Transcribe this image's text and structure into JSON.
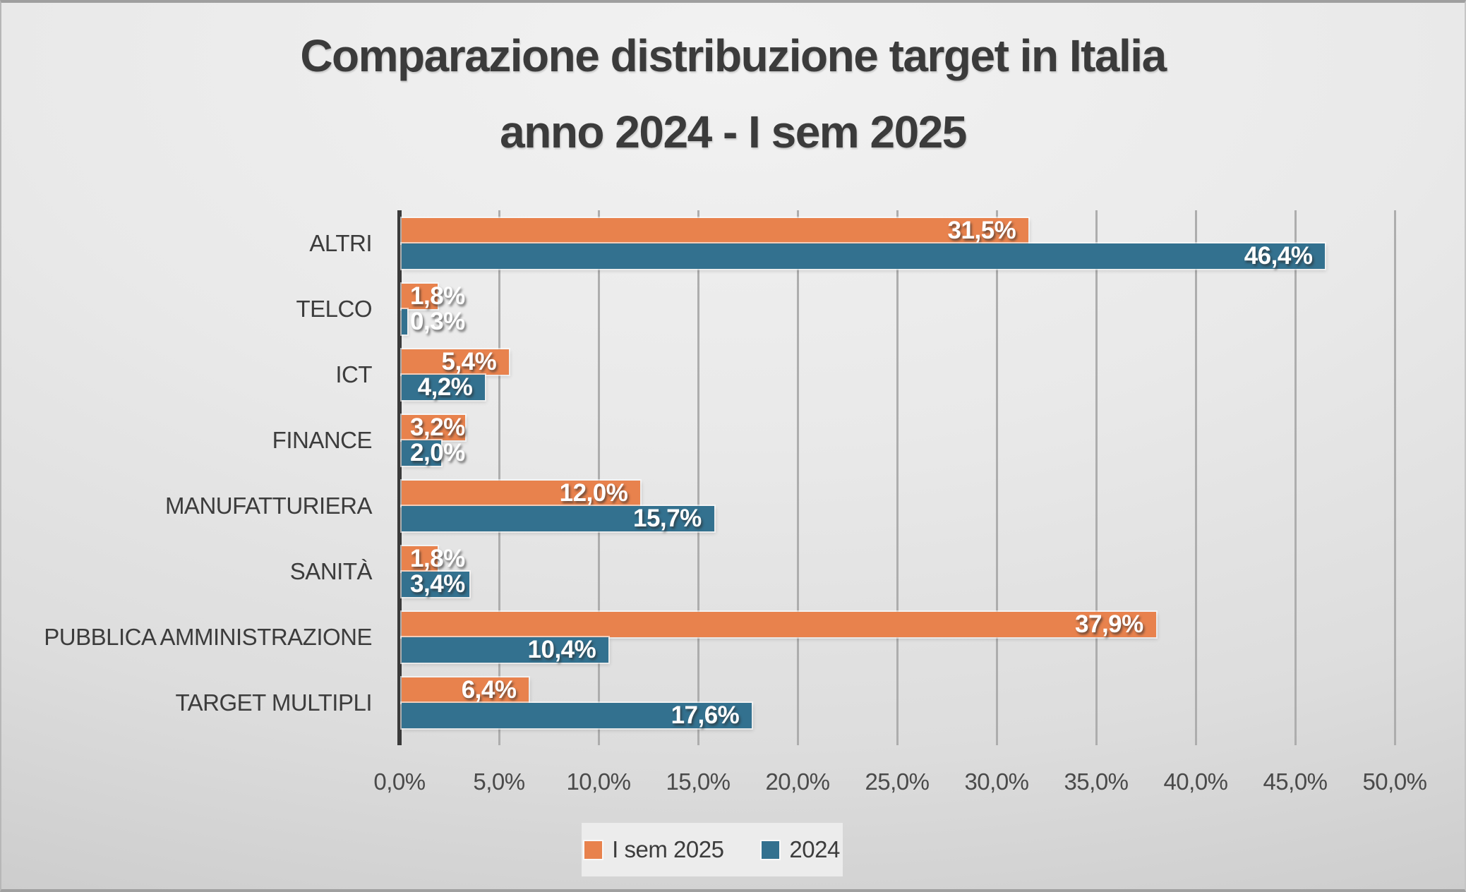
{
  "title": {
    "line1": "Comparazione distribuzione target in Italia",
    "line2": "anno 2024 - I sem 2025"
  },
  "chart_data": {
    "type": "bar",
    "orientation": "horizontal",
    "title": "Comparazione distribuzione target in Italia anno 2024 - I sem 2025",
    "categories": [
      "ALTRI",
      "TELCO",
      "ICT",
      "FINANCE",
      "MANUFATTURIERA",
      "SANITÀ",
      "PUBBLICA AMMINISTRAZIONE",
      "TARGET MULTIPLI"
    ],
    "series": [
      {
        "name": "I sem 2025",
        "color": "#E8824D",
        "values": [
          31.5,
          1.8,
          5.4,
          3.2,
          12.0,
          1.8,
          37.9,
          6.4
        ],
        "labels": [
          "31,5%",
          "1,8%",
          "5,4%",
          "3,2%",
          "12,0%",
          "1,8%",
          "37,9%",
          "6,4%"
        ]
      },
      {
        "name": "2024",
        "color": "#33718F",
        "values": [
          46.4,
          0.3,
          4.2,
          2.0,
          15.7,
          3.4,
          10.4,
          17.6
        ],
        "labels": [
          "46,4%",
          "0,3%",
          "4,2%",
          "2,0%",
          "15,7%",
          "3,4%",
          "10,4%",
          "17,6%"
        ]
      }
    ],
    "x_axis": {
      "min": 0,
      "max": 50,
      "tick_step": 5,
      "ticks": [
        "0,0%",
        "5,0%",
        "10,0%",
        "15,0%",
        "20,0%",
        "25,0%",
        "30,0%",
        "35,0%",
        "40,0%",
        "45,0%",
        "50,0%"
      ]
    },
    "grid": true,
    "legend": {
      "position": "bottom"
    }
  }
}
